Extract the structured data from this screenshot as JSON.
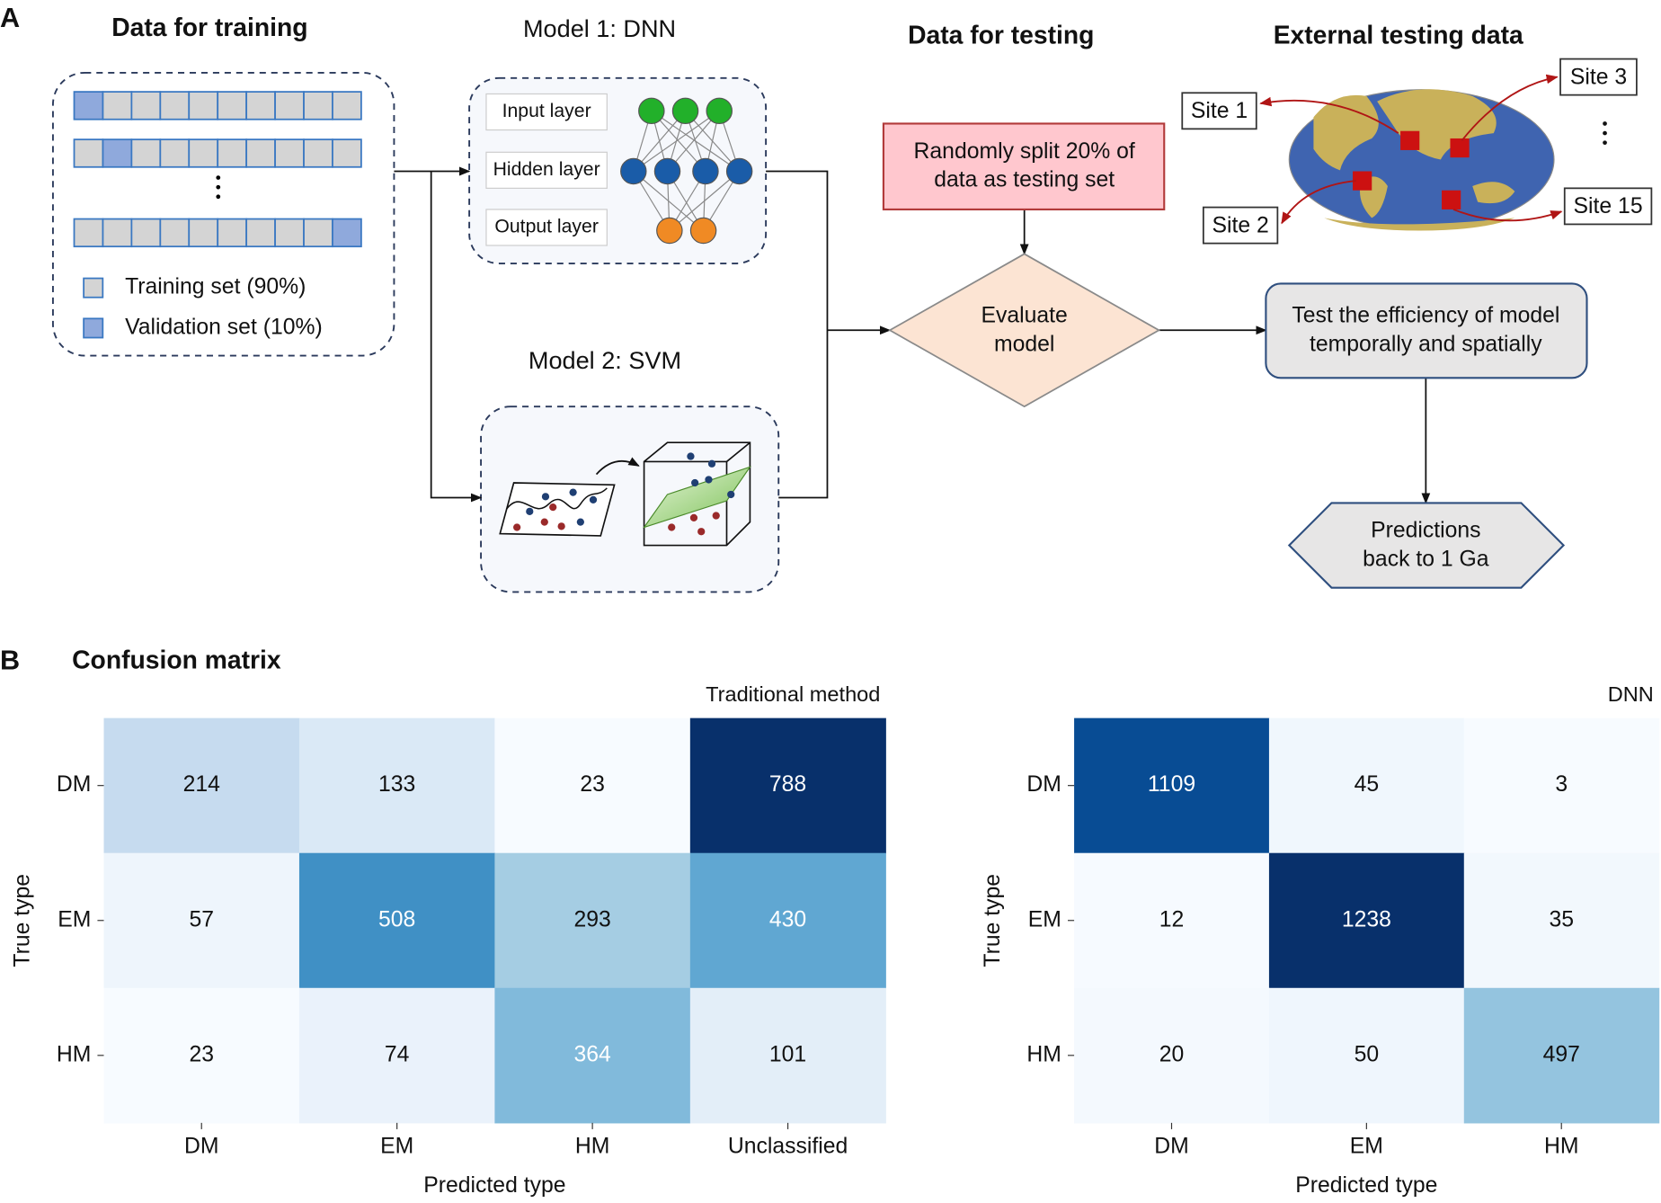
{
  "panel_a": {
    "label": "A",
    "training": {
      "title": "Data for training",
      "legend": [
        "Training set (90%)",
        "Validation set (10%)"
      ]
    },
    "model1": {
      "title": "Model 1: DNN",
      "layers": [
        "Input layer",
        "Hidden layer",
        "Output layer"
      ]
    },
    "model2": {
      "title": "Model 2: SVM"
    },
    "testing": {
      "title": "Data for testing",
      "split": [
        "Randomly split 20% of",
        "data as testing set"
      ],
      "evaluate": [
        "Evaluate",
        "model"
      ]
    },
    "external": {
      "title": "External testing data",
      "sites": [
        "Site 1",
        "Site 2",
        "Site 3",
        "Site 15"
      ]
    },
    "test_box": [
      "Test the efficiency of model",
      "temporally and spatially"
    ],
    "predictions": [
      "Predictions",
      "back to 1 Ga"
    ]
  },
  "panel_b": {
    "label": "B",
    "title": "Confusion matrix",
    "matrices": [
      {
        "title": "Traditional method",
        "rows": [
          "DM",
          "EM",
          "HM"
        ],
        "columns": [
          "DM",
          "EM",
          "HM",
          "Unclassified"
        ],
        "values": [
          [
            214,
            133,
            23,
            788
          ],
          [
            57,
            508,
            293,
            430
          ],
          [
            23,
            74,
            364,
            101
          ]
        ],
        "xlabel": "Predicted type",
        "ylabel": "True type"
      },
      {
        "title": "DNN",
        "rows": [
          "DM",
          "EM",
          "HM"
        ],
        "columns": [
          "DM",
          "EM",
          "HM"
        ],
        "values": [
          [
            1109,
            45,
            3
          ],
          [
            12,
            1238,
            35
          ],
          [
            20,
            50,
            497
          ]
        ],
        "xlabel": "Predicted type",
        "ylabel": "True type"
      }
    ]
  }
}
